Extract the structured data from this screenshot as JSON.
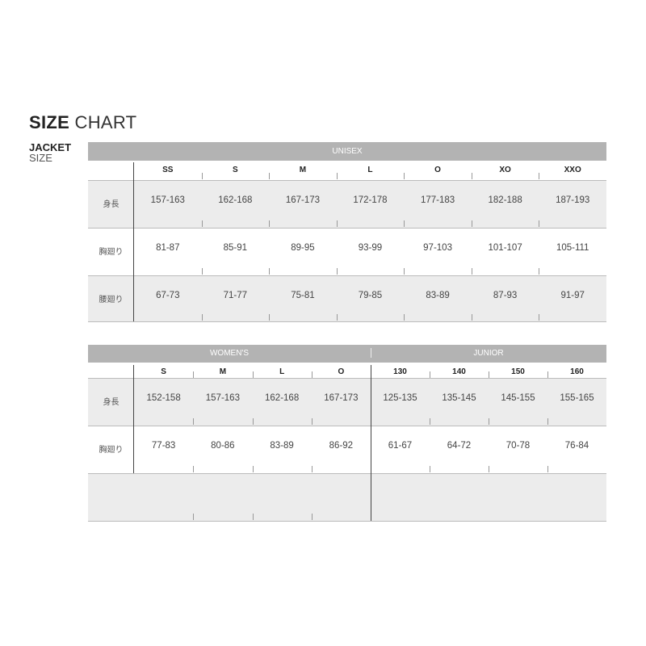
{
  "title": {
    "bold": "SIZE",
    "light": " CHART"
  },
  "subtitle": {
    "line1": "JACKET",
    "line2": "SIZE"
  },
  "unisex": {
    "header": "UNISEX",
    "sizes": [
      "SS",
      "S",
      "M",
      "L",
      "O",
      "XO",
      "XXO"
    ],
    "rows": [
      {
        "label": "身長",
        "values": [
          "157-163",
          "162-168",
          "167-173",
          "172-178",
          "177-183",
          "182-188",
          "187-193"
        ]
      },
      {
        "label": "胸廻り",
        "values": [
          "81-87",
          "85-91",
          "89-95",
          "93-99",
          "97-103",
          "101-107",
          "105-111"
        ]
      },
      {
        "label": "腰廻り",
        "values": [
          "67-73",
          "71-77",
          "75-81",
          "79-85",
          "83-89",
          "87-93",
          "91-97"
        ]
      }
    ]
  },
  "womens": {
    "header": "WOMEN'S",
    "sizes": [
      "S",
      "M",
      "L",
      "O"
    ],
    "rows": [
      {
        "label": "身長",
        "values": [
          "152-158",
          "157-163",
          "162-168",
          "167-173"
        ]
      },
      {
        "label": "胸廻り",
        "values": [
          "77-83",
          "80-86",
          "83-89",
          "86-92"
        ]
      }
    ]
  },
  "junior": {
    "header": "JUNIOR",
    "sizes": [
      "130",
      "140",
      "150",
      "160"
    ],
    "rows": [
      {
        "values": [
          "125-135",
          "135-145",
          "145-155",
          "155-165"
        ]
      },
      {
        "values": [
          "61-67",
          "64-72",
          "70-78",
          "76-84"
        ]
      }
    ]
  }
}
